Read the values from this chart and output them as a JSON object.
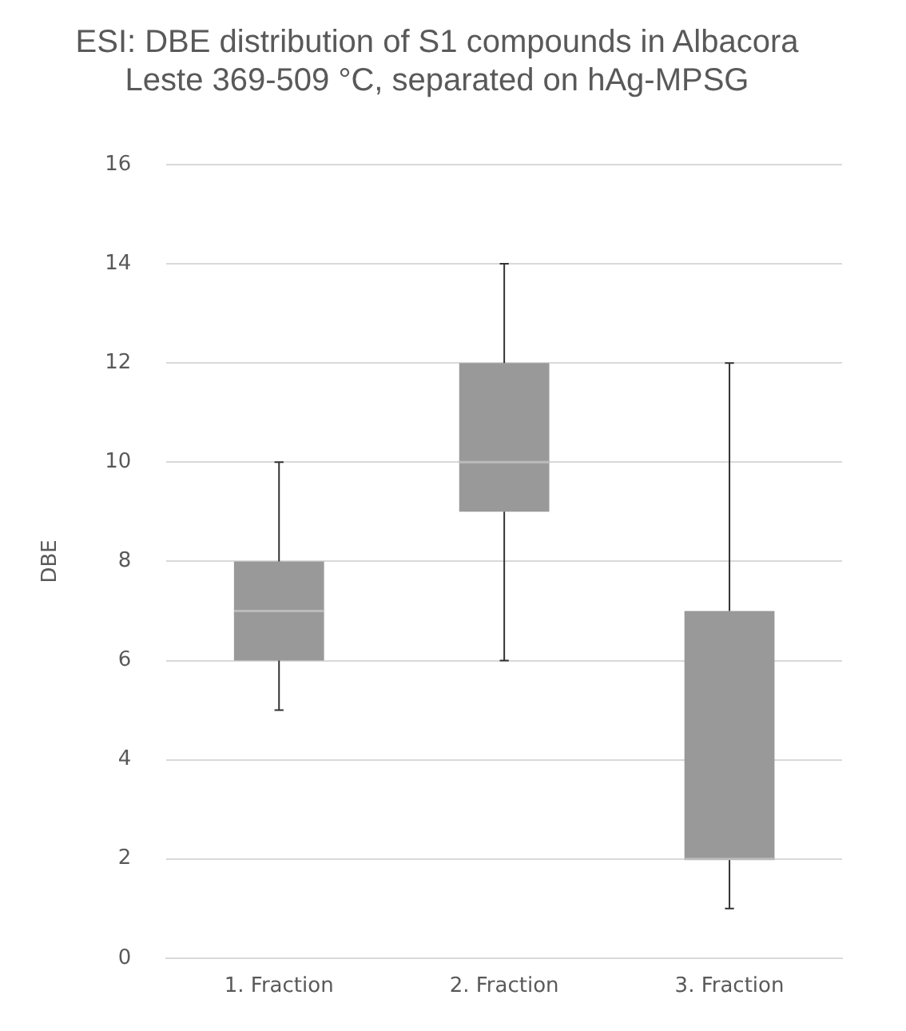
{
  "chart_data": {
    "type": "box",
    "title": "ESI: DBE distribution of S1 compounds in Albacora Leste 369-509 °C, separated on hAg-MPSG",
    "ylabel": "DBE",
    "categories": [
      "1. Fraction",
      "2. Fraction",
      "3. Fraction"
    ],
    "color": "#999999",
    "boxes": [
      {
        "low": 5,
        "q1": 6,
        "median": 7,
        "q3": 8,
        "high": 10
      },
      {
        "low": 6,
        "q1": 9,
        "median": 10,
        "q3": 12,
        "high": 14
      },
      {
        "low": 1,
        "q1": 2,
        "median": 2,
        "q3": 7,
        "high": 12
      }
    ],
    "ylim": [
      0,
      16
    ],
    "yticks": [
      0,
      2,
      4,
      6,
      8,
      10,
      12,
      14,
      16
    ],
    "grid": "y",
    "legend": false
  }
}
